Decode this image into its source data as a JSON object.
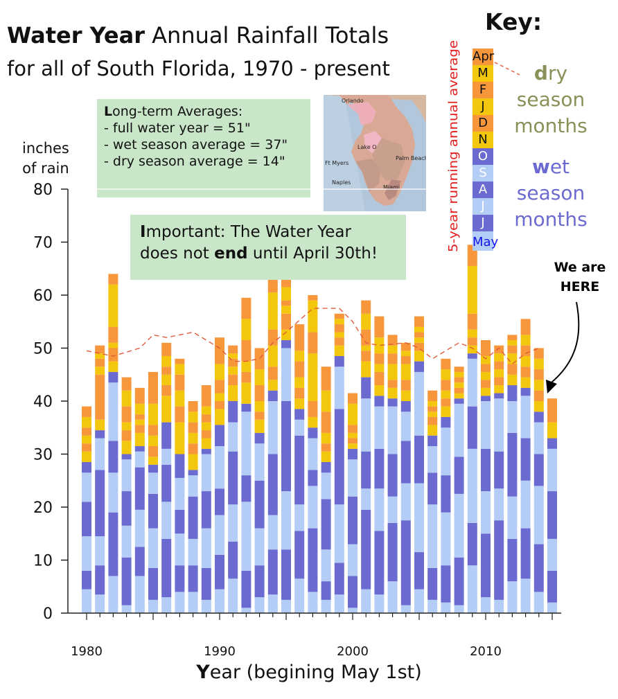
{
  "title": {
    "bold": "Water Year",
    "rest": " Annual Rainfall Totals",
    "line2": "for all of South Florida, 1970 - present"
  },
  "notes": {
    "averages": {
      "first": "L",
      "heading_rest": "ong-term Averages:",
      "lines": [
        "- full water year = 51\"",
        "- wet season average = 37\"",
        "- dry season average = 14\""
      ]
    },
    "important": {
      "first": "I",
      "part1": "mportant: The Water Year",
      "part2a": "does not ",
      "bold": "end",
      "part2b": " until April 30th!"
    }
  },
  "axis": {
    "ylabel_line1": "inches",
    "ylabel_line2": "of rain",
    "xlabel_first": "Y",
    "xlabel_rest": "ear (begining May 1st)"
  },
  "here": {
    "line1": "We are",
    "line2": "HERE"
  },
  "key": {
    "title": "Key:",
    "running_label": "5-year running annual average",
    "months": [
      {
        "label": "Apr",
        "color": "#f7963b",
        "text_color": "#111111"
      },
      {
        "label": "M",
        "color": "#f2c70d",
        "text_color": "#111111"
      },
      {
        "label": "F",
        "color": "#f7963b",
        "text_color": "#111111"
      },
      {
        "label": "J",
        "color": "#f2c70d",
        "text_color": "#111111"
      },
      {
        "label": "D",
        "color": "#f7963b",
        "text_color": "#111111"
      },
      {
        "label": "N",
        "color": "#f2c70d",
        "text_color": "#111111"
      },
      {
        "label": "O",
        "color": "#6a6ad0",
        "text_color": "#ffffff"
      },
      {
        "label": "S",
        "color": "#b3cdf7",
        "text_color": "#ffffff"
      },
      {
        "label": "A",
        "color": "#6a6ad0",
        "text_color": "#ffffff"
      },
      {
        "label": "J",
        "color": "#b3cdf7",
        "text_color": "#ffffff"
      },
      {
        "label": "J",
        "color": "#6a6ad0",
        "text_color": "#ffffff"
      },
      {
        "label": "May",
        "color": "#b3cdf7",
        "text_color": "#1515ee"
      }
    ],
    "dry": {
      "first": "d",
      "rest": "ry",
      "line2": "season",
      "line3": "months"
    },
    "wet": {
      "first": "w",
      "rest": "et",
      "line2": "season",
      "line3": "months"
    }
  },
  "map": {
    "labels": [
      "Orlando",
      "Lake O",
      "Ft Myers",
      "Palm Beach",
      "Naples",
      "Miami"
    ]
  },
  "colors": {
    "wet_a": "#b3cdf7",
    "wet_b": "#6a6ad0",
    "dry_a": "#f2c70d",
    "dry_b": "#f7963b",
    "avg_line": "#e25a3a",
    "running_label": "#e4201f"
  },
  "chart_data": {
    "type": "bar",
    "stacked": true,
    "xlim": [
      1980,
      2015
    ],
    "ylim": [
      0,
      80
    ],
    "y_ticks": [
      0,
      10,
      20,
      30,
      40,
      50,
      60,
      70,
      80
    ],
    "x_ticks": [
      1980,
      1990,
      2000,
      2010
    ],
    "grid": "horizontal",
    "series_order": [
      "May",
      "J",
      "J",
      "A",
      "S",
      "O",
      "N",
      "D",
      "J",
      "F",
      "M",
      "Apr"
    ],
    "bars": [
      {
        "year": 1980,
        "months": [
          4.5,
          3.5,
          6.5,
          6.5,
          5.5,
          2,
          2,
          1.5,
          1.5,
          1.5,
          2,
          2
        ]
      },
      {
        "year": 1981,
        "months": [
          3.5,
          5.5,
          5.5,
          12.5,
          6,
          1.5,
          2,
          8.5,
          1.5,
          1.5,
          1,
          1.5
        ]
      },
      {
        "year": 1982,
        "months": [
          7,
          12,
          7.5,
          6,
          11,
          2,
          2,
          2.5,
          1,
          3,
          8,
          2
        ]
      },
      {
        "year": 1983,
        "months": [
          1.5,
          9,
          6,
          6.5,
          6,
          1,
          2.5,
          2,
          1.5,
          3,
          3,
          2.5
        ]
      },
      {
        "year": 1984,
        "months": [
          7,
          5.5,
          7,
          8,
          3,
          1,
          2.5,
          1.5,
          1,
          1,
          2,
          3
        ]
      },
      {
        "year": 1985,
        "months": [
          2.5,
          6,
          7.5,
          6.5,
          4,
          1.5,
          1.5,
          2,
          2,
          2,
          4,
          6
        ]
      },
      {
        "year": 1986,
        "months": [
          3,
          11,
          7,
          7,
          3,
          5,
          5,
          2,
          2,
          1.5,
          2,
          2.5
        ]
      },
      {
        "year": 1987,
        "months": [
          4,
          5,
          6,
          4.5,
          6,
          4.5,
          6,
          3,
          3,
          3,
          2,
          1
        ]
      },
      {
        "year": 1988,
        "months": [
          4,
          5,
          5,
          8,
          4,
          1,
          3,
          2,
          2,
          2,
          2,
          2
        ]
      },
      {
        "year": 1989,
        "months": [
          2.5,
          6,
          7.5,
          7,
          7,
          1,
          2,
          1.5,
          1.5,
          1.5,
          1.5,
          4
        ]
      },
      {
        "year": 1990,
        "months": [
          4.5,
          6.5,
          7.5,
          5,
          8,
          4,
          3,
          1.5,
          1.5,
          2.5,
          3,
          5
        ]
      },
      {
        "year": 1991,
        "months": [
          6.5,
          7,
          7,
          10,
          5.5,
          4,
          3,
          2,
          1.5,
          1.5,
          1,
          1.5
        ]
      },
      {
        "year": 1992,
        "months": [
          1,
          7,
          13,
          5,
          12,
          1.5,
          4,
          2,
          2,
          4,
          4,
          4
        ]
      },
      {
        "year": 1993,
        "months": [
          3,
          6,
          7,
          9,
          7,
          2,
          2.5,
          1.5,
          2,
          3,
          3,
          4
        ]
      },
      {
        "year": 1994,
        "months": [
          3.5,
          8.5,
          6.5,
          11.5,
          10,
          2,
          2,
          2.5,
          4,
          3,
          7,
          3.5
        ]
      },
      {
        "year": 1995,
        "months": [
          2.5,
          9.5,
          11,
          17,
          10,
          1.5,
          2,
          3,
          1.5,
          1,
          2.5,
          2.5
        ]
      },
      {
        "year": 1996,
        "months": [
          6.5,
          9,
          5,
          13,
          3,
          2,
          2,
          2,
          2,
          3,
          2,
          5
        ]
      },
      {
        "year": 1997,
        "months": [
          4,
          12,
          8,
          3,
          6,
          2,
          2,
          3,
          9,
          4,
          6,
          1
        ]
      },
      {
        "year": 1998,
        "months": [
          2.5,
          3.5,
          6,
          9.5,
          5,
          2,
          2,
          1.5,
          2,
          4,
          4,
          4.5
        ]
      },
      {
        "year": 1999,
        "months": [
          3.5,
          6,
          11,
          18,
          8,
          2,
          2,
          1.5,
          1,
          1.5,
          1,
          1
        ]
      },
      {
        "year": 2000,
        "months": [
          1,
          6,
          6,
          9,
          7,
          2,
          1,
          1,
          1,
          1.5,
          4,
          2
        ]
      },
      {
        "year": 2001,
        "months": [
          4.5,
          15,
          4,
          7,
          10,
          4,
          3,
          2,
          1,
          3,
          3,
          2.5
        ]
      },
      {
        "year": 2002,
        "months": [
          3.5,
          12,
          8,
          7.5,
          8,
          2,
          2,
          2.5,
          1.5,
          2,
          3,
          4
        ]
      },
      {
        "year": 2003,
        "months": [
          6,
          11,
          5,
          8,
          9,
          1.5,
          2,
          1.5,
          3,
          2,
          1.5,
          2
        ]
      },
      {
        "year": 2004,
        "months": [
          1.5,
          16,
          7,
          8,
          5.5,
          2,
          2,
          2,
          3,
          1.5,
          1,
          1.5
        ]
      },
      {
        "year": 2005,
        "months": [
          4.5,
          7,
          13,
          9,
          12,
          2,
          2,
          1.5,
          1,
          1,
          1,
          2
        ]
      },
      {
        "year": 2006,
        "months": [
          2.5,
          6,
          12,
          6,
          5,
          2,
          2,
          1.5,
          1,
          1,
          1,
          2
        ]
      },
      {
        "year": 2007,
        "months": [
          2,
          7,
          10,
          7,
          9,
          2,
          2,
          1.5,
          1.5,
          2,
          2,
          2
        ]
      },
      {
        "year": 2008,
        "months": [
          1.5,
          9,
          12,
          7,
          10,
          1,
          1,
          1,
          1,
          1,
          1,
          1
        ]
      },
      {
        "year": 2009,
        "months": [
          9,
          8,
          14,
          8,
          9,
          1,
          1.5,
          1.5,
          1.5,
          3,
          9,
          4
        ]
      },
      {
        "year": 2010,
        "months": [
          3,
          12,
          8,
          8,
          9,
          1,
          1.5,
          1.5,
          1.5,
          1.5,
          1.5,
          3
        ]
      },
      {
        "year": 2011,
        "months": [
          2.5,
          15,
          6,
          7,
          10,
          1,
          1.5,
          1.5,
          1.5,
          1.5,
          1.5,
          1.5
        ]
      },
      {
        "year": 2012,
        "months": [
          6,
          8,
          8,
          12,
          6,
          3,
          2,
          2,
          2,
          1.5,
          1,
          1
        ]
      },
      {
        "year": 2013,
        "months": [
          6.5,
          9.5,
          9,
          8,
          8,
          1.5,
          2,
          2,
          2,
          2,
          2,
          3
        ]
      },
      {
        "year": 2014,
        "months": [
          4,
          9,
          11,
          6,
          6,
          2,
          2,
          2,
          2,
          2,
          2,
          2
        ]
      },
      {
        "year": 2015,
        "months": [
          2,
          6,
          6,
          9,
          8,
          2,
          3,
          4.5,
          0,
          0,
          0,
          0
        ]
      }
    ],
    "running_average": [
      [
        1980,
        49.5
      ],
      [
        1982,
        48.5
      ],
      [
        1984,
        50
      ],
      [
        1985,
        52.5
      ],
      [
        1986,
        52
      ],
      [
        1988,
        53
      ],
      [
        1990,
        50
      ],
      [
        1991,
        47.5
      ],
      [
        1992,
        47.5
      ],
      [
        1993,
        48
      ],
      [
        1994,
        51
      ],
      [
        1995,
        53
      ],
      [
        1997,
        57.5
      ],
      [
        1999,
        57.5
      ],
      [
        2000,
        55
      ],
      [
        2001,
        51
      ],
      [
        2002,
        50.5
      ],
      [
        2004,
        51
      ],
      [
        2005,
        50
      ],
      [
        2006,
        48
      ],
      [
        2008,
        51
      ],
      [
        2009,
        50
      ],
      [
        2010,
        48
      ],
      [
        2011,
        50
      ],
      [
        2012,
        47
      ],
      [
        2013,
        49
      ],
      [
        2014,
        50
      ]
    ]
  }
}
